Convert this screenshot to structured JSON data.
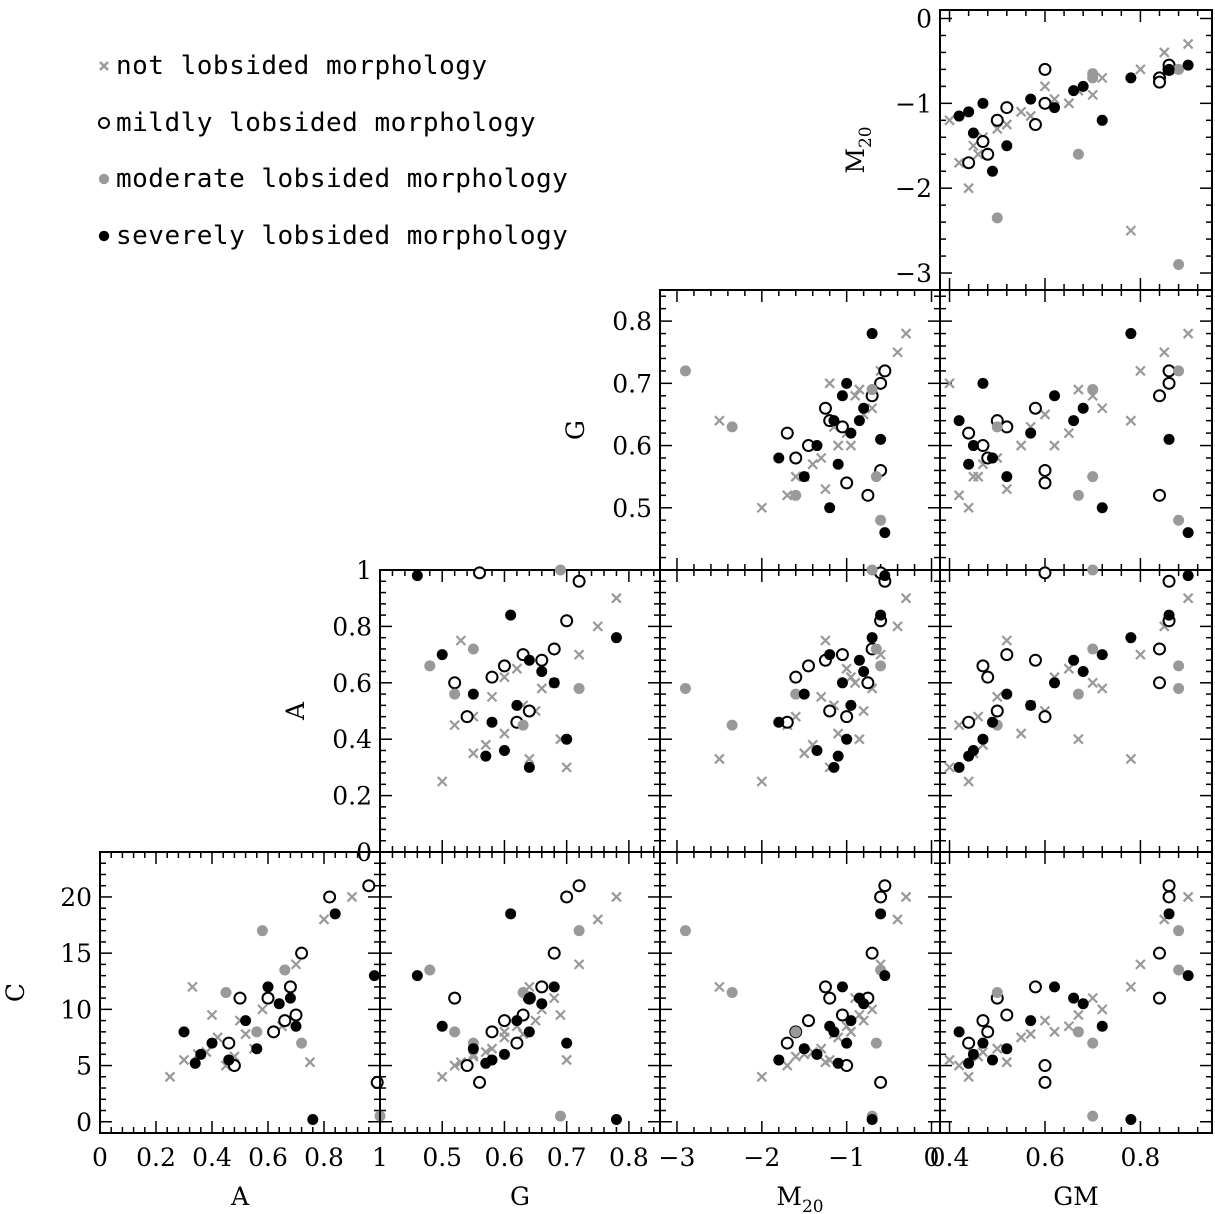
{
  "legend": {
    "items": [
      {
        "symbol": "cross",
        "color": "#999999",
        "label": "not lobsided morphology"
      },
      {
        "symbol": "open-circle",
        "color": "#000000",
        "label": "mildly lobsided morphology"
      },
      {
        "symbol": "filled-circle",
        "color": "#999999",
        "label": "moderate lobsided morphology"
      },
      {
        "symbol": "filled-circle",
        "color": "#000000",
        "label": "severely lobsided morphology"
      }
    ]
  },
  "chart_data": {
    "type": "scatter",
    "layout": "corner-plot",
    "variables": {
      "A": {
        "label": "A",
        "range": [
          0,
          1
        ],
        "ticks": [
          0,
          0.2,
          0.4,
          0.6,
          0.8,
          1
        ],
        "tick_labels": [
          "0",
          "0.2",
          "0.4",
          "0.6",
          "0.8",
          "1"
        ]
      },
      "G": {
        "label": "G",
        "range": [
          0.4,
          0.85
        ],
        "ticks": [
          0.5,
          0.6,
          0.7,
          0.8
        ],
        "tick_labels": [
          "0.5",
          "0.6",
          "0.7",
          "0.8"
        ]
      },
      "M20": {
        "label": "M20",
        "range": [
          -3.2,
          0.1
        ],
        "ticks": [
          -3,
          -2,
          -1,
          0
        ],
        "tick_labels": [
          "−3",
          "−2",
          "−1",
          "0"
        ]
      },
      "GM": {
        "label": "GM",
        "range": [
          0.38,
          0.95
        ],
        "ticks": [
          0.4,
          0.6,
          0.8
        ],
        "tick_labels": [
          "0.4",
          "0.6",
          "0.8"
        ]
      },
      "C": {
        "label": "C",
        "range": [
          -1,
          24
        ],
        "ticks": [
          0,
          5,
          10,
          15,
          20
        ],
        "tick_labels": [
          "0",
          "5",
          "10",
          "15",
          "20"
        ]
      }
    },
    "panels": [
      {
        "x": "GM",
        "y": "M20"
      },
      {
        "x": "M20",
        "y": "G"
      },
      {
        "x": "GM",
        "y": "G"
      },
      {
        "x": "G",
        "y": "A"
      },
      {
        "x": "M20",
        "y": "A"
      },
      {
        "x": "GM",
        "y": "A"
      },
      {
        "x": "A",
        "y": "C"
      },
      {
        "x": "G",
        "y": "C"
      },
      {
        "x": "M20",
        "y": "C"
      },
      {
        "x": "GM",
        "y": "C"
      }
    ],
    "series": [
      {
        "name": "not lobsided morphology",
        "marker": "cross",
        "color": "#999999",
        "points": [
          {
            "A": 0.3,
            "G": 0.7,
            "M20": -1.2,
            "GM": 0.4,
            "C": 5.5
          },
          {
            "A": 0.35,
            "G": 0.55,
            "M20": -1.5,
            "GM": 0.45,
            "C": 6.0
          },
          {
            "A": 0.42,
            "G": 0.6,
            "M20": -1.1,
            "GM": 0.55,
            "C": 7.5
          },
          {
            "A": 0.5,
            "G": 0.65,
            "M20": -0.8,
            "GM": 0.6,
            "C": 9.0
          },
          {
            "A": 0.55,
            "G": 0.58,
            "M20": -1.3,
            "GM": 0.5,
            "C": 6.5
          },
          {
            "A": 0.6,
            "G": 0.68,
            "M20": -0.9,
            "GM": 0.7,
            "C": 11.0
          },
          {
            "A": 0.45,
            "G": 0.52,
            "M20": -1.7,
            "GM": 0.42,
            "C": 5.0
          },
          {
            "A": 0.65,
            "G": 0.62,
            "M20": -1.0,
            "GM": 0.65,
            "C": 8.5
          },
          {
            "A": 0.7,
            "G": 0.72,
            "M20": -0.6,
            "GM": 0.8,
            "C": 14.0
          },
          {
            "A": 0.8,
            "G": 0.75,
            "M20": -0.4,
            "GM": 0.85,
            "C": 18.0
          },
          {
            "A": 0.38,
            "G": 0.57,
            "M20": -1.4,
            "GM": 0.47,
            "C": 6.2
          },
          {
            "A": 0.52,
            "G": 0.63,
            "M20": -1.15,
            "GM": 0.57,
            "C": 7.8
          },
          {
            "A": 0.25,
            "G": 0.5,
            "M20": -2.0,
            "GM": 0.44,
            "C": 4.0
          },
          {
            "A": 0.58,
            "G": 0.66,
            "M20": -0.7,
            "GM": 0.72,
            "C": 10.0
          },
          {
            "A": 0.9,
            "G": 0.78,
            "M20": -0.3,
            "GM": 0.9,
            "C": 20.0
          },
          {
            "A": 0.48,
            "G": 0.55,
            "M20": -1.6,
            "GM": 0.46,
            "C": 5.8
          },
          {
            "A": 0.62,
            "G": 0.6,
            "M20": -0.95,
            "GM": 0.62,
            "C": 8.0
          },
          {
            "A": 0.33,
            "G": 0.64,
            "M20": -2.5,
            "GM": 0.78,
            "C": 12.0
          },
          {
            "A": 0.75,
            "G": 0.53,
            "M20": -1.25,
            "GM": 0.52,
            "C": 5.3
          },
          {
            "A": 0.4,
            "G": 0.69,
            "M20": -0.85,
            "GM": 0.67,
            "C": 9.5
          }
        ]
      },
      {
        "name": "mildly lobsided morphology",
        "marker": "open-circle",
        "color": "#000000",
        "points": [
          {
            "A": 0.46,
            "G": 0.62,
            "M20": -1.7,
            "GM": 0.44,
            "C": 7.0
          },
          {
            "A": 0.5,
            "G": 0.64,
            "M20": -1.2,
            "GM": 0.5,
            "C": 11.0
          },
          {
            "A": 0.68,
            "G": 0.66,
            "M20": -1.25,
            "GM": 0.58,
            "C": 12.0
          },
          {
            "A": 0.82,
            "G": 0.7,
            "M20": -0.6,
            "GM": 0.86,
            "C": 20.0
          },
          {
            "A": 0.62,
            "G": 0.58,
            "M20": -1.6,
            "GM": 0.48,
            "C": 8.0
          },
          {
            "A": 0.96,
            "G": 0.72,
            "M20": -0.55,
            "GM": 0.86,
            "C": 21.0
          },
          {
            "A": 0.48,
            "G": 0.54,
            "M20": -1.0,
            "GM": 0.6,
            "C": 5.0
          },
          {
            "A": 0.72,
            "G": 0.68,
            "M20": -0.7,
            "GM": 0.84,
            "C": 15.0
          },
          {
            "A": 0.66,
            "G": 0.6,
            "M20": -1.45,
            "GM": 0.47,
            "C": 9.0
          },
          {
            "A": 0.99,
            "G": 0.56,
            "M20": -0.6,
            "GM": 0.6,
            "C": 3.5
          },
          {
            "A": 0.6,
            "G": 0.52,
            "M20": -0.75,
            "GM": 0.84,
            "C": 11.0
          },
          {
            "A": 0.7,
            "G": 0.63,
            "M20": -1.05,
            "GM": 0.52,
            "C": 9.5
          }
        ]
      },
      {
        "name": "moderate lobsided morphology",
        "marker": "filled-circle",
        "color": "#999999",
        "points": [
          {
            "A": 0.58,
            "G": 0.72,
            "M20": -2.9,
            "GM": 0.88,
            "C": 17.0
          },
          {
            "A": 0.66,
            "G": 0.48,
            "M20": -0.6,
            "GM": 0.88,
            "C": 13.5
          },
          {
            "A": 0.45,
            "G": 0.63,
            "M20": -2.35,
            "GM": 0.5,
            "C": 11.5
          },
          {
            "A": 0.56,
            "G": 0.52,
            "M20": -1.6,
            "GM": 0.67,
            "C": 8.0
          },
          {
            "A": 0.72,
            "G": 0.55,
            "M20": -0.65,
            "GM": 0.7,
            "C": 7.0
          },
          {
            "A": 1.0,
            "G": 0.69,
            "M20": -0.7,
            "GM": 0.7,
            "C": 0.5
          }
        ]
      },
      {
        "name": "severely lobsided morphology",
        "marker": "filled-circle",
        "color": "#000000",
        "points": [
          {
            "A": 0.3,
            "G": 0.64,
            "M20": -1.15,
            "GM": 0.42,
            "C": 8.0
          },
          {
            "A": 0.36,
            "G": 0.6,
            "M20": -1.35,
            "GM": 0.45,
            "C": 6.0
          },
          {
            "A": 0.4,
            "G": 0.7,
            "M20": -1.0,
            "GM": 0.47,
            "C": 7.0
          },
          {
            "A": 0.52,
            "G": 0.62,
            "M20": -0.95,
            "GM": 0.57,
            "C": 9.0
          },
          {
            "A": 0.56,
            "G": 0.55,
            "M20": -1.5,
            "GM": 0.52,
            "C": 6.5
          },
          {
            "A": 0.64,
            "G": 0.66,
            "M20": -0.8,
            "GM": 0.68,
            "C": 10.5
          },
          {
            "A": 0.76,
            "G": 0.78,
            "M20": -0.7,
            "GM": 0.78,
            "C": 0.2
          },
          {
            "A": 0.84,
            "G": 0.61,
            "M20": -0.6,
            "GM": 0.86,
            "C": 18.5
          },
          {
            "A": 0.7,
            "G": 0.5,
            "M20": -1.2,
            "GM": 0.72,
            "C": 8.5
          },
          {
            "A": 0.46,
            "G": 0.58,
            "M20": -1.8,
            "GM": 0.49,
            "C": 5.5
          },
          {
            "A": 0.6,
            "G": 0.68,
            "M20": -1.05,
            "GM": 0.62,
            "C": 12.0
          },
          {
            "A": 0.98,
            "G": 0.46,
            "M20": -0.55,
            "GM": 0.9,
            "C": 13.0
          },
          {
            "A": 0.34,
            "G": 0.57,
            "M20": -1.1,
            "GM": 0.44,
            "C": 5.2
          },
          {
            "A": 0.68,
            "G": 0.64,
            "M20": -0.85,
            "GM": 0.66,
            "C": 11.0
          }
        ]
      }
    ]
  }
}
